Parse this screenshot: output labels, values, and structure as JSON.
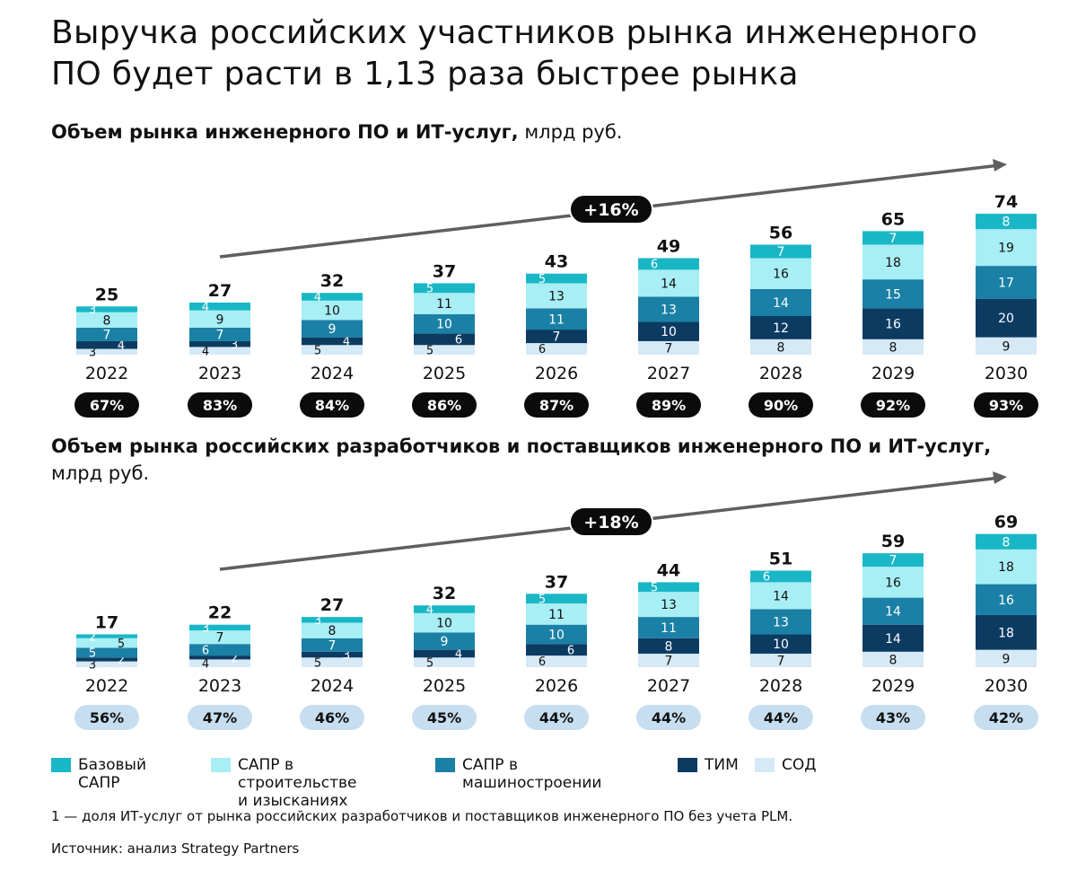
{
  "title_line1": "Выручка российских участников рынка инженерного",
  "title_line2": "ПО будет расти в 1,13 раза быстрее рынка",
  "colors": {
    "base_sapr": "#19b7c6",
    "sapr_build": "#a8eef5",
    "sapr_mech": "#1a80a5",
    "tim": "#0c3b62",
    "sod": "#d5e9f7",
    "pill_dark": "#0b0b0b",
    "pill_light": "#c6def0",
    "arrow": "#5f5f5f"
  },
  "chart_data": [
    {
      "type": "bar",
      "title_bold": "Объем рынка инженерного ПО и ИТ-услуг,",
      "title_unit": "млрд руб.",
      "stacked": true,
      "categories": [
        "2022",
        "2023",
        "2024",
        "2025",
        "2026",
        "2027",
        "2028",
        "2029",
        "2030"
      ],
      "series": [
        {
          "name": "СОД",
          "key": "sod",
          "values": [
            3,
            4,
            5,
            5,
            6,
            7,
            8,
            8,
            9
          ]
        },
        {
          "name": "ТИМ",
          "key": "tim",
          "values": [
            4,
            3,
            4,
            6,
            7,
            10,
            12,
            16,
            20
          ]
        },
        {
          "name": "САПР в машиностроении",
          "key": "sapr_mech",
          "values": [
            7,
            7,
            9,
            10,
            11,
            13,
            14,
            15,
            17
          ]
        },
        {
          "name": "САПР в строительстве и изысканиях",
          "key": "sapr_build",
          "values": [
            8,
            9,
            10,
            11,
            13,
            14,
            16,
            18,
            19
          ]
        },
        {
          "name": "Базовый САПР",
          "key": "base_sapr",
          "values": [
            3,
            4,
            4,
            5,
            5,
            6,
            7,
            7,
            8
          ]
        }
      ],
      "totals": [
        25,
        27,
        32,
        37,
        43,
        49,
        56,
        65,
        74
      ],
      "shares": [
        "67%",
        "83%",
        "84%",
        "86%",
        "87%",
        "89%",
        "90%",
        "92%",
        "93%"
      ],
      "share_style": "dark",
      "cagr": "+16%"
    },
    {
      "type": "bar",
      "title_bold": "Объем рынка российских разработчиков и поставщиков инженерного ПО и ИТ-услуг,",
      "title_unit": "млрд руб.",
      "stacked": true,
      "categories": [
        "2022",
        "2023",
        "2024",
        "2025",
        "2026",
        "2027",
        "2028",
        "2029",
        "2030"
      ],
      "series": [
        {
          "name": "СОД",
          "key": "sod",
          "values": [
            3,
            4,
            5,
            5,
            6,
            7,
            7,
            8,
            9
          ]
        },
        {
          "name": "ТИМ",
          "key": "tim",
          "values": [
            2,
            2,
            3,
            4,
            6,
            8,
            10,
            14,
            18
          ]
        },
        {
          "name": "САПР в машиностроении",
          "key": "sapr_mech",
          "values": [
            5,
            6,
            7,
            9,
            10,
            11,
            13,
            14,
            16
          ]
        },
        {
          "name": "САПР в строительстве и изысканиях",
          "key": "sapr_build",
          "values": [
            5,
            7,
            8,
            10,
            11,
            13,
            14,
            16,
            18
          ]
        },
        {
          "name": "Базовый САПР",
          "key": "base_sapr",
          "values": [
            2,
            3,
            3,
            4,
            5,
            5,
            6,
            7,
            8
          ]
        }
      ],
      "totals": [
        17,
        22,
        27,
        32,
        37,
        44,
        51,
        59,
        69
      ],
      "shares": [
        "56%",
        "47%",
        "46%",
        "45%",
        "44%",
        "44%",
        "44%",
        "43%",
        "42%"
      ],
      "share_style": "light",
      "cagr": "+18%"
    }
  ],
  "legend": [
    {
      "key": "base_sapr",
      "label": "Базовый САПР"
    },
    {
      "key": "sapr_build",
      "label": "САПР в строительстве\nи изысканиях"
    },
    {
      "key": "sapr_mech",
      "label": "САПР в машиностроении"
    },
    {
      "key": "tim",
      "label": "ТИМ"
    },
    {
      "key": "sod",
      "label": "СОД"
    }
  ],
  "footnote": "1 — доля ИТ-услуг от рынка российских разработчиков и поставщиков инженерного ПО без учета PLM.",
  "source": "Источник: анализ Strategy Partners"
}
